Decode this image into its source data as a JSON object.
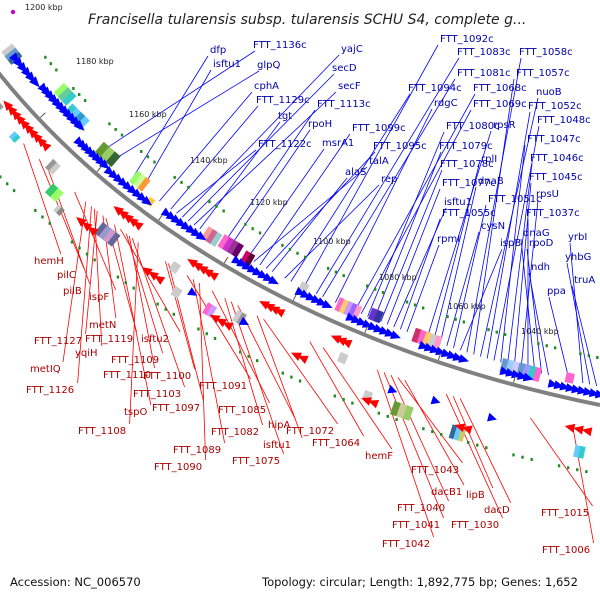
{
  "title": "Francisella tularensis subsp. tularensis SCHU S4, complete g...",
  "footer": {
    "accession_label": "Accession:",
    "accession": "NC_006570",
    "topology_label": "Topology:",
    "topology": "circular;",
    "length_label": "Length:",
    "length": "1,892,775 bp;",
    "genes_label": "Genes:",
    "genes": "1,652"
  },
  "colors": {
    "backbone": "#808080",
    "forward_gene": "#0000ff",
    "reverse_gene": "#ff0000",
    "top_label": "#0000aa",
    "bottom_label": "#aa0000",
    "marker_green": "#228b22"
  },
  "ticks": [
    {
      "label": "1200 kbp"
    },
    {
      "label": "1180 kbp"
    },
    {
      "label": "1160 kbp"
    },
    {
      "label": "1140 kbp"
    },
    {
      "label": "1120 kbp"
    },
    {
      "label": "1100 kbp"
    },
    {
      "label": "1080 kbp"
    },
    {
      "label": "1060 kbp"
    },
    {
      "label": "1040 kbp"
    }
  ],
  "top_labels": [
    "dfp",
    "FTT_1136c",
    "isftu1",
    "glpQ",
    "yajC",
    "secD",
    "cphA",
    "FTT_1129c",
    "secF",
    "tgt",
    "FTT_1113c",
    "rpoH",
    "FTT_1122c",
    "msrA1",
    "FTT_1099c",
    "FTT_1095c",
    "talA",
    "alaS",
    "rep",
    "FTT_1094c",
    "FTT_1092c",
    "FTT_1083c",
    "FTT_1081c",
    "FTT_1058c",
    "FTT_1057c",
    "FTT_1068c",
    "FTT_1069c",
    "nuoB",
    "rdgC",
    "FTT_1052c",
    "FTT_1080c",
    "FTT_1079c",
    "rpsR",
    "FTT_1048c",
    "FTT_1047c",
    "FTT_1078c",
    "rplI",
    "FTT_1046c",
    "dnaB",
    "FTT_1045c",
    "FTT_1077c",
    "isftu1",
    "FTT_1051c",
    "rpsU",
    "FTT_1055c",
    "FTT_1037c",
    "cysN",
    "rpmI",
    "dnaG",
    "ispB",
    "rpoD",
    "yrbI",
    "ndh",
    "yhbG",
    "truA",
    "ppa"
  ],
  "bottom_labels": [
    "hemH",
    "pilC",
    "pilB",
    "ispF",
    "metN",
    "FTT_1127",
    "FTT_1119",
    "isftu2",
    "yqiH",
    "FTT_1109",
    "metIQ",
    "FTT_1110",
    "FTT_1100",
    "FTT_1126",
    "FTT_1103",
    "FTT_1091",
    "tspO",
    "FTT_1097",
    "FTT_1085",
    "FTT_1108",
    "FTT_1082",
    "hipA",
    "FTT_1072",
    "FTT_1089",
    "isftu1",
    "FTT_1064",
    "FTT_1090",
    "FTT_1075",
    "hemF",
    "FTT_1043",
    "dacB1",
    "FTT_1040",
    "lipB",
    "FTT_1041",
    "dacD",
    "FTT_1030",
    "FTT_1015",
    "FTT_1042",
    "FTT_1006"
  ]
}
